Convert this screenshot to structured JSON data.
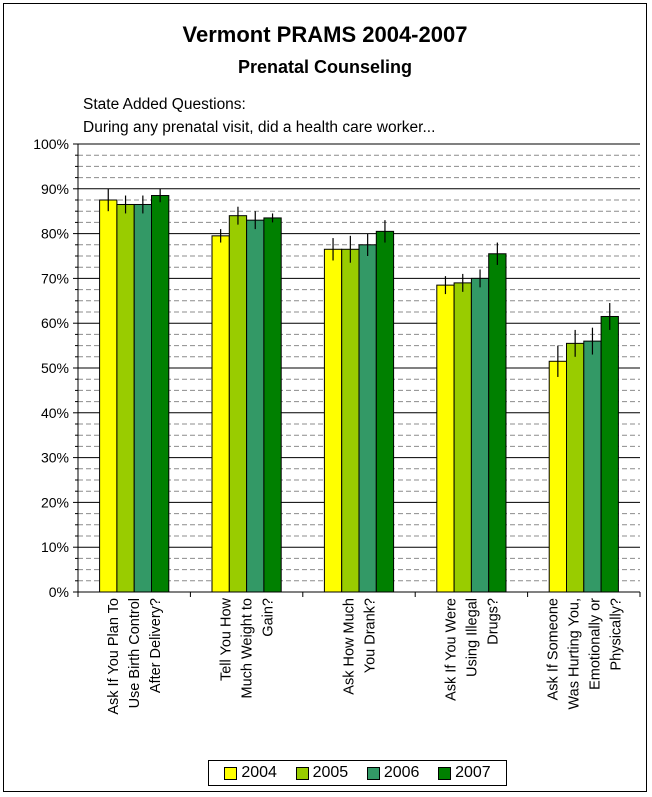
{
  "chart_data": {
    "type": "bar",
    "title": "Vermont PRAMS 2004-2007",
    "subtitle": "Prenatal Counseling",
    "notes": [
      "State Added Questions:",
      "During any prenatal visit, did a health care worker..."
    ],
    "xlabel": "",
    "ylabel": "",
    "ylim": [
      0,
      100
    ],
    "yticks": [
      "0%",
      "10%",
      "20%",
      "30%",
      "40%",
      "50%",
      "60%",
      "70%",
      "80%",
      "90%",
      "100%"
    ],
    "grid": true,
    "legend_position": "bottom",
    "categories": [
      "Ask If You Plan To Use Birth Control After Delivery?",
      "Tell You How Much Weight to Gain?",
      "Ask How Much You Drank?",
      "Ask If You Were Using Illegal Drugs?",
      "Ask If Someone Was Hurting You, Emotionally or Physically?"
    ],
    "category_lines": [
      [
        "Ask If You Plan To",
        "Use Birth Control",
        "After Delivery?"
      ],
      [
        "Tell You How",
        "Much Weight to",
        "Gain?"
      ],
      [
        "Ask How Much",
        "You Drank?"
      ],
      [
        "Ask If You Were",
        "Using Illegal",
        "Drugs?"
      ],
      [
        "Ask If Someone",
        "Was Hurting You,",
        "Emotionally or",
        "Physically?"
      ]
    ],
    "series": [
      {
        "name": "2004",
        "color": "#ffff00",
        "values": [
          87.5,
          79.5,
          76.5,
          68.5,
          51.5
        ],
        "err": [
          2.5,
          1.5,
          2.5,
          2.0,
          3.5
        ]
      },
      {
        "name": "2005",
        "color": "#99cc00",
        "values": [
          86.5,
          84.0,
          76.5,
          69.0,
          55.5
        ],
        "err": [
          2.0,
          2.0,
          3.0,
          2.0,
          3.0
        ]
      },
      {
        "name": "2006",
        "color": "#339966",
        "values": [
          86.5,
          83.0,
          77.5,
          70.0,
          56.0
        ],
        "err": [
          2.0,
          2.0,
          2.5,
          2.0,
          3.0
        ]
      },
      {
        "name": "2007",
        "color": "#008000",
        "values": [
          88.5,
          83.5,
          80.5,
          75.5,
          61.5
        ],
        "err": [
          1.5,
          1.0,
          2.5,
          2.5,
          3.0
        ]
      }
    ]
  }
}
